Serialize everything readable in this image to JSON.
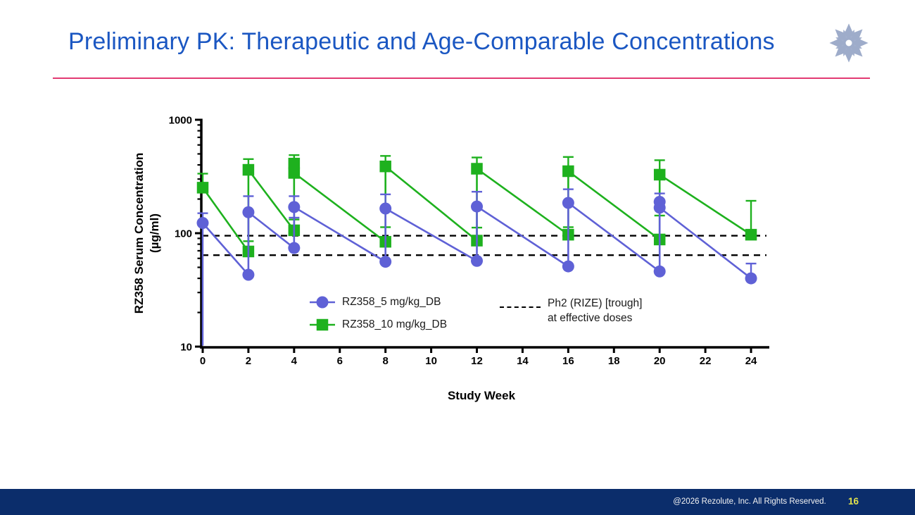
{
  "slide": {
    "title": "Preliminary PK: Therapeutic and Age-Comparable Concentrations",
    "footer": {
      "copyright": "@2026 Rezolute, Inc. All Rights Reserved.",
      "page_number": "16"
    },
    "colors": {
      "title_blue": "#1b57c2",
      "divider_pink": "#e23a72",
      "footer_navy": "#0b2d6b",
      "page_number_yellow": "#e3e34c",
      "logo_slate": "#96a5c6"
    }
  },
  "chart_data": {
    "type": "line",
    "title": "",
    "xlabel": "Study Week",
    "ylabel_line1": "RZ358 Serum Concentration",
    "ylabel_line2": "(µg/ml)",
    "y_scale": "log",
    "ylim": [
      10,
      1000
    ],
    "y_ticks": [
      10,
      100,
      1000
    ],
    "x_ticks": [
      0,
      2,
      4,
      6,
      8,
      10,
      12,
      14,
      16,
      18,
      20,
      22,
      24
    ],
    "xlim": [
      0,
      24
    ],
    "grid": false,
    "series": [
      {
        "name": "RZ358_10 mg/kg_DB",
        "color": "#1eb11e",
        "marker": "square",
        "points": [
          {
            "x": 0,
            "y": 252,
            "hi": 335
          },
          {
            "x": 2,
            "y": 69,
            "hi": 85
          },
          {
            "x": 2,
            "y": 362,
            "hi": 450
          },
          {
            "x": 4,
            "y": 106,
            "hi": 132
          },
          {
            "x": 4,
            "y": 340,
            "hi": 488
          },
          {
            "x": 8,
            "y": 84,
            "hi": 113
          },
          {
            "x": 8,
            "y": 388,
            "hi": 480
          },
          {
            "x": 12,
            "y": 86,
            "hi": 112
          },
          {
            "x": 12,
            "y": 370,
            "hi": 465
          },
          {
            "x": 16,
            "y": 97,
            "hi": 113
          },
          {
            "x": 16,
            "y": 352,
            "hi": 470
          },
          {
            "x": 20,
            "y": 88,
            "hi": 143
          },
          {
            "x": 20,
            "y": 328,
            "hi": 440
          },
          {
            "x": 24,
            "y": 97,
            "hi": 193
          }
        ],
        "extra_markers": [
          {
            "x": 4,
            "y": 411
          }
        ]
      },
      {
        "name": "RZ358_5 mg/kg_DB",
        "color": "#5f61d6",
        "marker": "circle",
        "points": [
          {
            "x": 0,
            "y": 123,
            "hi": 150,
            "lo": 10.2
          },
          {
            "x": 2,
            "y": 43
          },
          {
            "x": 2,
            "y": 153,
            "hi": 212
          },
          {
            "x": 4,
            "y": 74
          },
          {
            "x": 4,
            "y": 170,
            "hi": 212,
            "lo": 137
          },
          {
            "x": 8,
            "y": 56
          },
          {
            "x": 8,
            "y": 165,
            "hi": 220
          },
          {
            "x": 12,
            "y": 57
          },
          {
            "x": 12,
            "y": 172,
            "hi": 232
          },
          {
            "x": 16,
            "y": 51
          },
          {
            "x": 16,
            "y": 185,
            "hi": 244
          },
          {
            "x": 20,
            "y": 46
          },
          {
            "x": 20,
            "y": 168,
            "hi": 224
          },
          {
            "x": 24,
            "y": 40,
            "hi": 54
          }
        ],
        "extra_markers": [
          {
            "x": 20,
            "y": 189
          }
        ]
      }
    ],
    "reference_lines": [
      {
        "y": 95,
        "style": "dashed",
        "color": "#000000"
      },
      {
        "y": 64,
        "style": "dashed",
        "color": "#000000"
      }
    ],
    "legend": {
      "items": [
        {
          "label": "RZ358_5 mg/kg_DB",
          "marker": "circle",
          "color": "#5f61d6"
        },
        {
          "label": "RZ358_10 mg/kg_DB",
          "marker": "square",
          "color": "#1eb11e"
        }
      ],
      "reference_label_line1": "Ph2 (RIZE) [trough]",
      "reference_label_line2": "at effective doses"
    }
  }
}
